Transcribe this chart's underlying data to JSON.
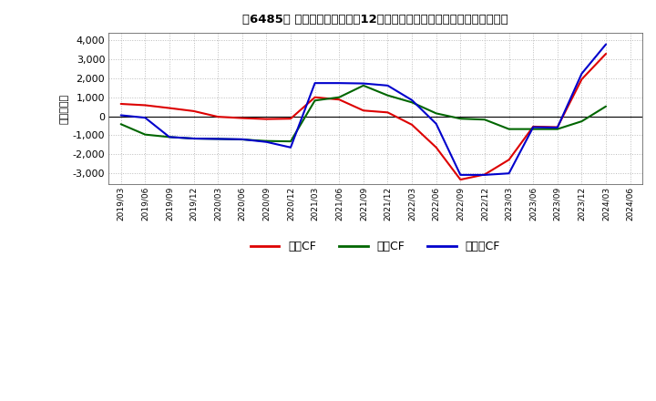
{
  "title_str": "［6485］ キャッシュフローの12か月移動合計の対前年同期増減額の推移",
  "ylabel": "（百万円）",
  "background_color": "#ffffff",
  "plot_bg_color": "#ffffff",
  "grid_color": "#bbbbbb",
  "ylim": [
    -3600,
    4400
  ],
  "yticks": [
    -3000,
    -2000,
    -1000,
    0,
    1000,
    2000,
    3000,
    4000
  ],
  "x_labels": [
    "2019/03",
    "2019/06",
    "2019/09",
    "2019/12",
    "2020/03",
    "2020/06",
    "2020/09",
    "2020/12",
    "2021/03",
    "2021/06",
    "2021/09",
    "2021/12",
    "2022/03",
    "2022/06",
    "2022/09",
    "2022/12",
    "2023/03",
    "2023/06",
    "2023/09",
    "2023/12",
    "2024/03",
    "2024/06"
  ],
  "series": {
    "営業CF": {
      "color": "#dd0000",
      "data": [
        650,
        580,
        430,
        270,
        -30,
        -100,
        -150,
        -130,
        1000,
        880,
        300,
        200,
        -450,
        -1650,
        -3350,
        -3080,
        -2300,
        -550,
        -580,
        1950,
        3300,
        null
      ]
    },
    "投資CF": {
      "color": "#006600",
      "data": [
        -420,
        -970,
        -1100,
        -1180,
        -1200,
        -1230,
        -1310,
        -1330,
        830,
        1000,
        1620,
        1100,
        730,
        150,
        -130,
        -180,
        -680,
        -680,
        -680,
        -270,
        520,
        null
      ]
    },
    "フリーCF": {
      "color": "#0000cc",
      "data": [
        50,
        -80,
        -1100,
        -1180,
        -1200,
        -1220,
        -1360,
        -1650,
        1750,
        1750,
        1730,
        1620,
        850,
        -400,
        -3100,
        -3100,
        -3020,
        -580,
        -600,
        2250,
        3800,
        null
      ]
    }
  },
  "legend_labels": [
    "営業CF",
    "投資CF",
    "フリーCF"
  ],
  "legend_colors": [
    "#dd0000",
    "#006600",
    "#0000cc"
  ]
}
